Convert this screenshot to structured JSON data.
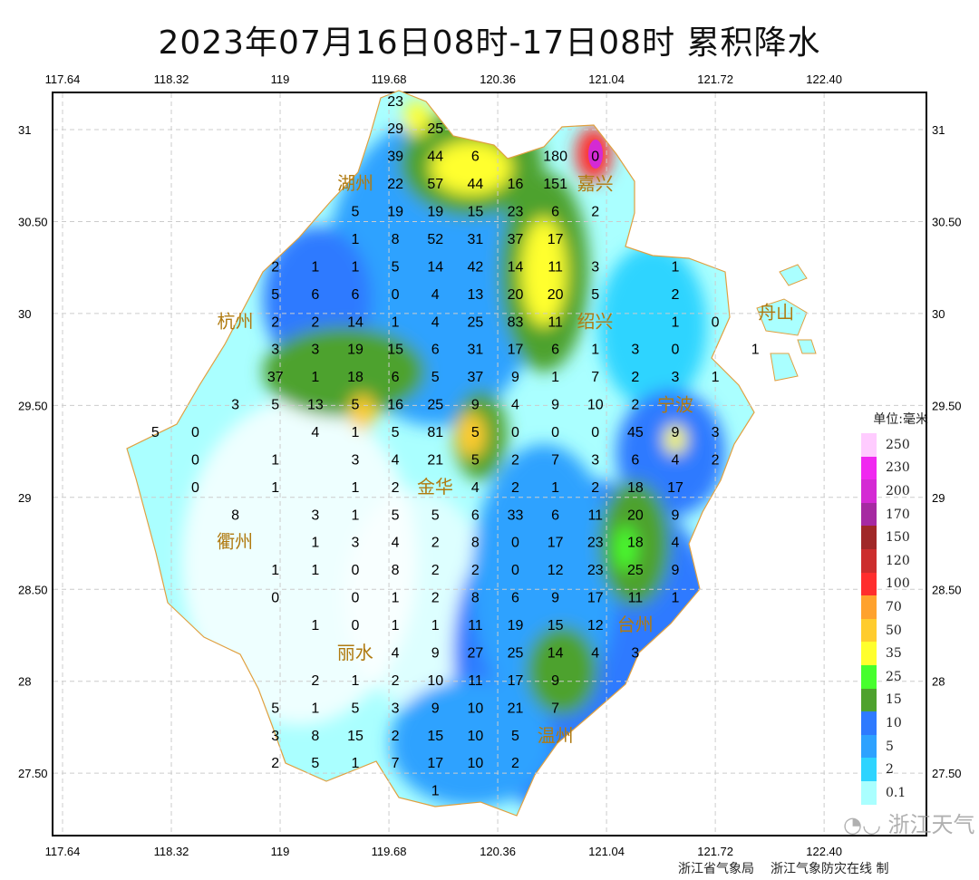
{
  "title": "2023年07月16日08时-17日08时  累积降水",
  "axes": {
    "lon_ticks": [
      "117.64",
      "118.32",
      "119",
      "119.68",
      "120.36",
      "121.04",
      "121.72",
      "122.40"
    ],
    "lat_ticks": [
      "31",
      "30.50",
      "30",
      "29.50",
      "29",
      "28.50",
      "28",
      "27.50"
    ]
  },
  "stations": {
    "lon_start": 118.22,
    "lon_step": 0.25,
    "rows": [
      {
        "lat": 31.15,
        "values": [
          null,
          null,
          null,
          null,
          null,
          null,
          "23"
        ]
      },
      {
        "lat": 31.0,
        "values": [
          null,
          null,
          null,
          null,
          null,
          null,
          "29",
          "25"
        ]
      },
      {
        "lat": 30.85,
        "values": [
          null,
          null,
          null,
          null,
          null,
          null,
          "39",
          "44",
          "6",
          null,
          "180",
          "0"
        ]
      },
      {
        "lat": 30.7,
        "values": [
          null,
          null,
          null,
          null,
          null,
          null,
          "22",
          "57",
          "44",
          "16",
          "151"
        ]
      },
      {
        "lat": 30.55,
        "values": [
          null,
          null,
          null,
          null,
          null,
          "5",
          "19",
          "19",
          "15",
          "23",
          "6",
          "2"
        ]
      },
      {
        "lat": 30.4,
        "values": [
          null,
          null,
          null,
          null,
          null,
          "1",
          "8",
          "52",
          "31",
          "37",
          "17"
        ]
      },
      {
        "lat": 30.25,
        "values": [
          null,
          null,
          null,
          "2",
          "1",
          "1",
          "5",
          "14",
          "42",
          "14",
          "11",
          "3",
          null,
          "1"
        ]
      },
      {
        "lat": 30.1,
        "values": [
          null,
          null,
          null,
          "5",
          "6",
          "6",
          "0",
          "4",
          "13",
          "20",
          "20",
          "5",
          null,
          "2"
        ]
      },
      {
        "lat": 29.95,
        "values": [
          null,
          null,
          null,
          "2",
          "2",
          "14",
          "1",
          "4",
          "25",
          "83",
          "11",
          null,
          null,
          "1",
          "0"
        ]
      },
      {
        "lat": 29.8,
        "values": [
          null,
          null,
          null,
          "3",
          "3",
          "19",
          "15",
          "6",
          "31",
          "17",
          "6",
          "1",
          "3",
          "0",
          null,
          "1"
        ]
      },
      {
        "lat": 29.65,
        "values": [
          null,
          null,
          null,
          "37",
          "1",
          "18",
          "6",
          "5",
          "37",
          "9",
          "1",
          "7",
          "2",
          "3",
          "1"
        ]
      },
      {
        "lat": 29.5,
        "values": [
          null,
          null,
          "3",
          "5",
          "13",
          "5",
          "16",
          "25",
          "9",
          "4",
          "9",
          "10",
          "2"
        ]
      },
      {
        "lat": 29.35,
        "values": [
          "5",
          "0",
          null,
          null,
          "4",
          "1",
          "5",
          "81",
          "5",
          "0",
          "0",
          "0",
          "45",
          "9",
          "3"
        ]
      },
      {
        "lat": 29.2,
        "values": [
          null,
          "0",
          null,
          "1",
          null,
          "3",
          "4",
          "21",
          "5",
          "2",
          "7",
          "3",
          "6",
          "4",
          "2"
        ]
      },
      {
        "lat": 29.05,
        "values": [
          null,
          "0",
          null,
          "1",
          null,
          "1",
          "2",
          null,
          "4",
          "2",
          "1",
          "2",
          "18",
          "17"
        ]
      },
      {
        "lat": 28.9,
        "values": [
          null,
          null,
          "8",
          null,
          "3",
          "1",
          "5",
          "5",
          "6",
          "33",
          "6",
          "11",
          "20",
          "9"
        ]
      },
      {
        "lat": 28.75,
        "values": [
          null,
          null,
          null,
          null,
          "1",
          "3",
          "4",
          "2",
          "8",
          "0",
          "17",
          "23",
          "18",
          "4"
        ]
      },
      {
        "lat": 28.6,
        "values": [
          null,
          null,
          null,
          "1",
          "1",
          "0",
          "8",
          "2",
          "2",
          "0",
          "12",
          "23",
          "25",
          "9"
        ]
      },
      {
        "lat": 28.45,
        "values": [
          null,
          null,
          null,
          "0",
          null,
          "0",
          "1",
          "2",
          "8",
          "6",
          "9",
          "17",
          "11",
          "1"
        ]
      },
      {
        "lat": 28.3,
        "values": [
          null,
          null,
          null,
          null,
          "1",
          "0",
          "1",
          "1",
          "11",
          "19",
          "15",
          "12"
        ]
      },
      {
        "lat": 28.15,
        "values": [
          null,
          null,
          null,
          null,
          null,
          null,
          "4",
          "9",
          "27",
          "25",
          "14",
          "4",
          "3"
        ]
      },
      {
        "lat": 28.0,
        "values": [
          null,
          null,
          null,
          null,
          "2",
          "1",
          "2",
          "10",
          "11",
          "17",
          "9"
        ]
      },
      {
        "lat": 27.85,
        "values": [
          null,
          null,
          null,
          "5",
          "1",
          "5",
          "3",
          "9",
          "10",
          "21",
          "7"
        ]
      },
      {
        "lat": 27.7,
        "values": [
          null,
          null,
          null,
          "3",
          "8",
          "15",
          "2",
          "15",
          "10",
          "5"
        ]
      },
      {
        "lat": 27.55,
        "values": [
          null,
          null,
          null,
          "2",
          "5",
          "1",
          "7",
          "17",
          "10",
          "2"
        ]
      },
      {
        "lat": 27.4,
        "values": [
          null,
          null,
          null,
          null,
          null,
          null,
          null,
          "1"
        ]
      }
    ]
  },
  "cities": [
    {
      "name": "湖州",
      "lon": 119.85,
      "lat": 30.83
    },
    {
      "name": "嘉兴",
      "lon": 120.72,
      "lat": 30.71
    },
    {
      "name": "杭州",
      "lon": 119.15,
      "lat": 29.97
    },
    {
      "name": "绍兴",
      "lon": 120.6,
      "lat": 29.67
    },
    {
      "name": "宁波",
      "lon": 121.43,
      "lat": 29.67
    },
    {
      "name": "舟山",
      "lon": 122.1,
      "lat": 30.0
    },
    {
      "name": "金华",
      "lon": 119.94,
      "lat": 29.06
    },
    {
      "name": "衢州",
      "lon": 118.7,
      "lat": 28.86
    },
    {
      "name": "台州",
      "lon": 121.18,
      "lat": 28.73
    },
    {
      "name": "丽水",
      "lon": 119.48,
      "lat": 28.15
    },
    {
      "name": "温州",
      "lon": 120.38,
      "lat": 27.83
    }
  ],
  "legend": {
    "title": "单位:毫米",
    "items": [
      {
        "label": "250",
        "color": "#ffccff"
      },
      {
        "label": "230",
        "color": "#f028f0"
      },
      {
        "label": "200",
        "color": "#d42ad4"
      },
      {
        "label": "170",
        "color": "#a62aa2"
      },
      {
        "label": "150",
        "color": "#a02828"
      },
      {
        "label": "120",
        "color": "#cc2e2e"
      },
      {
        "label": "100",
        "color": "#ff2e2e"
      },
      {
        "label": "70",
        "color": "#ffa22e"
      },
      {
        "label": "50",
        "color": "#ffcc2e"
      },
      {
        "label": "35",
        "color": "#ffff2e"
      },
      {
        "label": "25",
        "color": "#46ff2e"
      },
      {
        "label": "15",
        "color": "#4ea22e"
      },
      {
        "label": "10",
        "color": "#2e7aff"
      },
      {
        "label": "5",
        "color": "#2ea2ff"
      },
      {
        "label": "2",
        "color": "#2ed4ff"
      },
      {
        "label": "0.1",
        "color": "#aaffff"
      }
    ]
  },
  "credit": {
    "org1": "浙江省气象局",
    "org2": "浙江气象防灾在线 制"
  },
  "watermark": "浙江天气"
}
